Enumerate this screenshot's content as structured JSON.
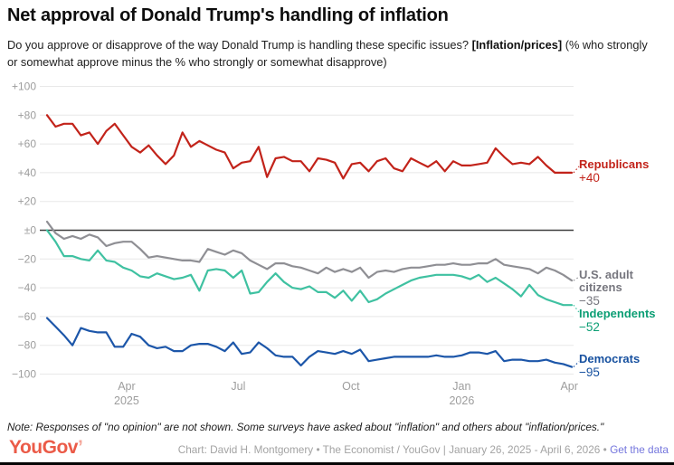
{
  "header": {
    "title": "Net approval of Donald Trump's handling of inflation",
    "subtitle_pre": "Do you approve or disapprove of the way Donald Trump is handling these specific issues? ",
    "subtitle_bold": "[Inflation/prices]",
    "subtitle_post": " (% who strongly or somewhat approve minus the % who strongly or somewhat disapprove)"
  },
  "chart_data": {
    "type": "line",
    "title": "Net approval of Donald Trump's handling of inflation",
    "x_unit": "weekly surveys",
    "date_range": "January 26, 2025 - April 6, 2026",
    "ylim": [
      -100,
      100
    ],
    "grid": "horizontal",
    "legend_position": "right-end-labels",
    "y_ticks": [
      {
        "value": 100,
        "label": "+100"
      },
      {
        "value": 80,
        "label": "+80"
      },
      {
        "value": 60,
        "label": "+60"
      },
      {
        "value": 40,
        "label": "+40"
      },
      {
        "value": 20,
        "label": "+20"
      },
      {
        "value": 0,
        "label": "±0"
      },
      {
        "value": -20,
        "label": "−20"
      },
      {
        "value": -40,
        "label": "−40"
      },
      {
        "value": -60,
        "label": "−60"
      },
      {
        "value": -80,
        "label": "−80"
      },
      {
        "value": -100,
        "label": "−100"
      }
    ],
    "x_ticks": [
      {
        "week": 9.4,
        "label": "Apr",
        "sublabel": "2025"
      },
      {
        "week": 22.6,
        "label": "Jul",
        "sublabel": ""
      },
      {
        "week": 35.9,
        "label": "Oct",
        "sublabel": ""
      },
      {
        "week": 49.0,
        "label": "Jan",
        "sublabel": "2026"
      },
      {
        "week": 61.7,
        "label": "Apr",
        "sublabel": ""
      }
    ],
    "series": [
      {
        "name": "Republicans",
        "end_label": "Republicans",
        "end_value": 40,
        "end_value_label": "+40",
        "color": "#c2231a",
        "label_color": "#c2231a",
        "leader_dy": -7,
        "values": [
          80,
          72,
          74,
          74,
          66,
          68,
          60,
          69,
          74,
          66,
          58,
          54,
          59,
          52,
          46,
          52,
          68,
          58,
          62,
          59,
          56,
          54,
          43,
          47,
          48,
          58,
          37,
          50,
          51,
          48,
          48,
          41,
          50,
          49,
          47,
          36,
          46,
          47,
          41,
          48,
          50,
          43,
          41,
          50,
          47,
          44,
          48,
          41,
          48,
          45,
          45,
          46,
          47,
          57,
          51,
          46,
          47,
          46,
          51,
          45,
          40,
          40,
          40
        ]
      },
      {
        "name": "U.S. adult citizens",
        "end_label": "U.S. adult citizens",
        "end_value": -35,
        "end_value_label": "−35",
        "color": "#8f8f94",
        "label_color": "#76767e",
        "leader_dy": -4,
        "values": [
          6,
          -2,
          -6,
          -4,
          -6,
          -3,
          -5,
          -11,
          -9,
          -8,
          -8,
          -13,
          -19,
          -18,
          -19,
          -20,
          -21,
          -21,
          -22,
          -13,
          -15,
          -17,
          -14,
          -16,
          -21,
          -24,
          -27,
          -23,
          -23,
          -25,
          -26,
          -28,
          -30,
          -26,
          -29,
          -27,
          -29,
          -26,
          -33,
          -29,
          -28,
          -29,
          -27,
          -26,
          -26,
          -25,
          -24,
          -24,
          -23,
          -24,
          -24,
          -23,
          -23,
          -20,
          -24,
          -25,
          -26,
          -27,
          -30,
          -26,
          -28,
          -31,
          -35
        ]
      },
      {
        "name": "Independents",
        "end_label": "Independents",
        "end_value": -52,
        "end_value_label": "−52",
        "color": "#3fc1a1",
        "label_color": "#0b9e74",
        "leader_dy": 8,
        "values": [
          0,
          -8,
          -18,
          -18,
          -20,
          -21,
          -14,
          -21,
          -22,
          -26,
          -28,
          -32,
          -33,
          -30,
          -32,
          -34,
          -33,
          -31,
          -42,
          -28,
          -27,
          -28,
          -33,
          -28,
          -44,
          -43,
          -36,
          -30,
          -36,
          -40,
          -41,
          -39,
          -43,
          -43,
          -47,
          -42,
          -49,
          -42,
          -50,
          -48,
          -44,
          -41,
          -38,
          -35,
          -33,
          -32,
          -31,
          -31,
          -31,
          -32,
          -34,
          -31,
          -36,
          -33,
          -37,
          -41,
          -46,
          -38,
          -45,
          -48,
          -50,
          -52,
          -52
        ]
      },
      {
        "name": "Democrats",
        "end_label": "Democrats",
        "end_value": -95,
        "end_value_label": "−95",
        "color": "#1c56a9",
        "label_color": "#16509f",
        "leader_dy": -6,
        "values": [
          -61,
          -67,
          -73,
          -80,
          -68,
          -70,
          -71,
          -71,
          -81,
          -81,
          -72,
          -74,
          -80,
          -82,
          -81,
          -84,
          -84,
          -80,
          -79,
          -79,
          -81,
          -84,
          -78,
          -86,
          -85,
          -78,
          -82,
          -87,
          -88,
          -88,
          -94,
          -88,
          -84,
          -85,
          -86,
          -84,
          -86,
          -83,
          -91,
          -90,
          -89,
          -88,
          -88,
          -88,
          -88,
          -88,
          -87,
          -88,
          -88,
          -87,
          -85,
          -85,
          -86,
          -84,
          -91,
          -90,
          -90,
          -91,
          -91,
          -90,
          -92,
          -93,
          -95
        ]
      }
    ]
  },
  "note": "Note: Responses of \"no opinion\" are not shown. Some surveys have asked about \"inflation\" and others about \"inflation/prices.\"",
  "footer": {
    "logo": "YouGov",
    "logo_tick": "’",
    "credit": "Chart: David H. Montgomery • The Economist / YouGov | January 26, 2025 - April 6, 2026 • ",
    "link": "Get the data"
  }
}
